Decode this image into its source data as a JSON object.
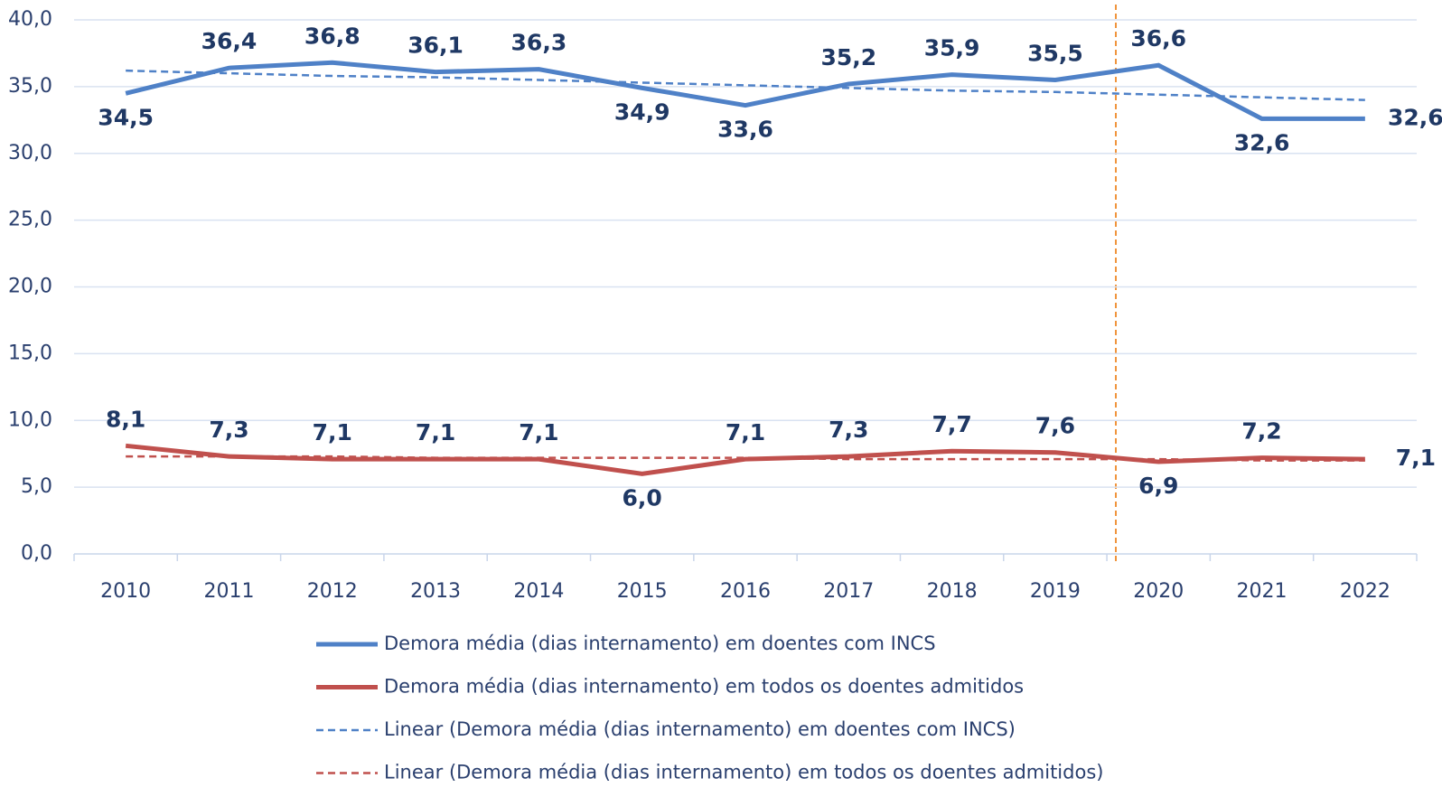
{
  "chart_data": {
    "type": "line",
    "categories": [
      "2010",
      "2011",
      "2012",
      "2013",
      "2014",
      "2015",
      "2016",
      "2017",
      "2018",
      "2019",
      "2020",
      "2021",
      "2022"
    ],
    "series": [
      {
        "name": "Demora média (dias internamento) em doentes com INCS",
        "color": "#4f81c7",
        "dashed": false,
        "values": [
          34.5,
          36.4,
          36.8,
          36.1,
          36.3,
          34.9,
          33.6,
          35.2,
          35.9,
          35.5,
          36.6,
          32.6,
          32.6
        ],
        "value_labels": [
          "34,5",
          "36,4",
          "36,8",
          "36,1",
          "36,3",
          "34,9",
          "33,6",
          "35,2",
          "35,9",
          "35,5",
          "36,6",
          "32,6",
          "32,6"
        ]
      },
      {
        "name": "Demora média (dias internamento) em todos os doentes admitidos",
        "color": "#c0504d",
        "dashed": false,
        "values": [
          8.1,
          7.3,
          7.1,
          7.1,
          7.1,
          6.0,
          7.1,
          7.3,
          7.7,
          7.6,
          6.9,
          7.2,
          7.1
        ],
        "value_labels": [
          "8,1",
          "7,3",
          "7,1",
          "7,1",
          "7,1",
          "6,0",
          "7,1",
          "7,3",
          "7,7",
          "7,6",
          "6,9",
          "7,2",
          "7,1"
        ]
      },
      {
        "name": "Linear (Demora média (dias internamento) em doentes com INCS)",
        "color": "#4f81c7",
        "dashed": true,
        "values": [
          36.2,
          36.0,
          35.8,
          35.7,
          35.5,
          35.3,
          35.1,
          34.9,
          34.7,
          34.6,
          34.4,
          34.2,
          34.0
        ]
      },
      {
        "name": "Linear (Demora média (dias internamento) em todos os doentes admitidos)",
        "color": "#c0504d",
        "dashed": true,
        "values": [
          7.3,
          7.3,
          7.3,
          7.2,
          7.2,
          7.2,
          7.2,
          7.1,
          7.1,
          7.1,
          7.1,
          7.0,
          7.0
        ]
      }
    ],
    "ylim": [
      0,
      40
    ],
    "yticks": [
      {
        "value": 0,
        "label": "0,0"
      },
      {
        "value": 5,
        "label": "5,0"
      },
      {
        "value": 10,
        "label": "10,0"
      },
      {
        "value": 15,
        "label": "15,0"
      },
      {
        "value": 20,
        "label": "20,0"
      },
      {
        "value": 25,
        "label": "25,0"
      },
      {
        "value": 30,
        "label": "30,0"
      },
      {
        "value": 35,
        "label": "35,0"
      },
      {
        "value": 40,
        "label": "40,0"
      }
    ],
    "grid": true
  }
}
